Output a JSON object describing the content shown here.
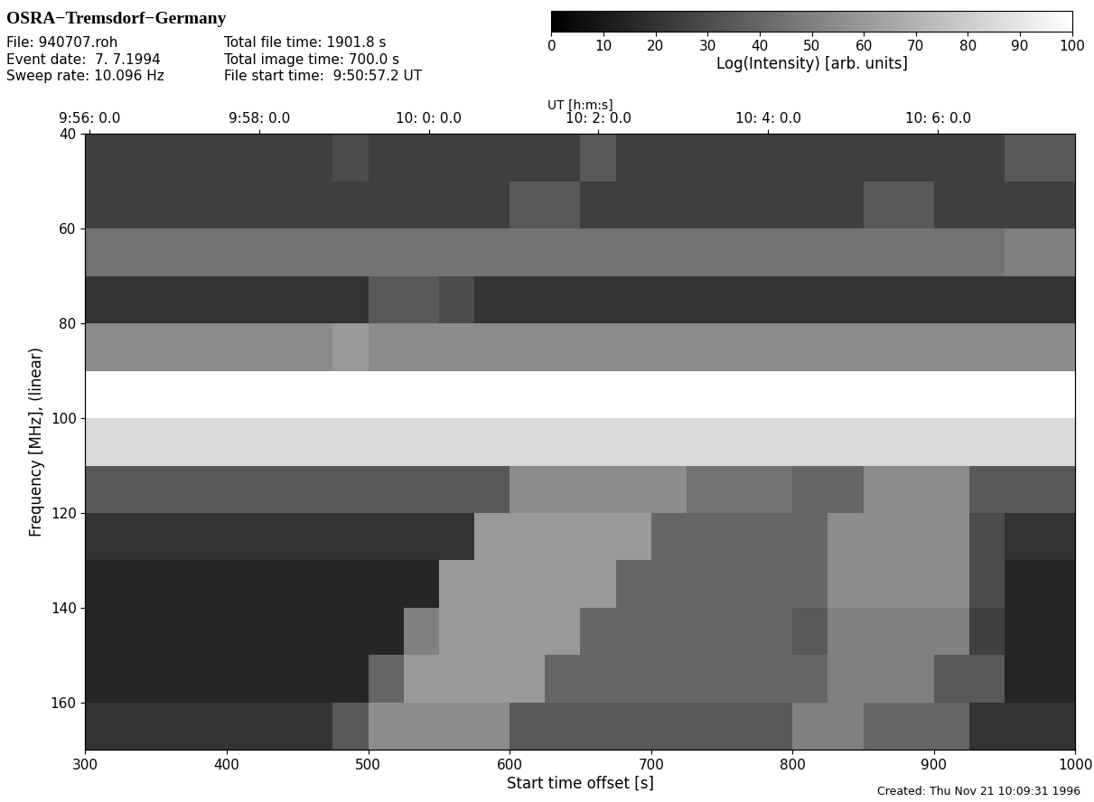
{
  "chart_data": {
    "type": "heatmap",
    "title": "OSRA−Tremsdorf−Germany",
    "header": [
      [
        "File: 940707.roh",
        "Event date:  7. 7.1994",
        "Sweep rate: 10.096 Hz"
      ],
      [
        "Total file time: 1901.8 s",
        "Total image time: 700.0 s",
        "File start time:  9:50:57.2 UT"
      ]
    ],
    "footer": "Created: Thu Nov 21 10:09:31 1996",
    "x_label": "Start time offset [s]",
    "y_label": "Frequency [MHz], (linear)",
    "x2_label": "UT [h:m:s]",
    "colorbar_label": "Log(Intensity) [arb. units]",
    "xlim": [
      300,
      1000
    ],
    "xticks": [
      300,
      400,
      500,
      600,
      700,
      800,
      900,
      1000
    ],
    "x2ticks": [
      {
        "value": 302.8,
        "label": "9:56: 0.0"
      },
      {
        "value": 422.8,
        "label": "9:58: 0.0"
      },
      {
        "value": 542.8,
        "label": "10: 0: 0.0"
      },
      {
        "value": 662.8,
        "label": "10: 2: 0.0"
      },
      {
        "value": 782.8,
        "label": "10: 4: 0.0"
      },
      {
        "value": 902.8,
        "label": "10: 6: 0.0"
      }
    ],
    "ylim": [
      170,
      40
    ],
    "yticks": [
      40,
      60,
      80,
      100,
      120,
      140,
      160
    ],
    "clim": [
      0,
      100
    ],
    "cticks": [
      0,
      10,
      20,
      30,
      40,
      50,
      60,
      70,
      80,
      90,
      100
    ],
    "x_bins": [
      300,
      325,
      350,
      375,
      400,
      425,
      450,
      475,
      500,
      525,
      550,
      575,
      600,
      625,
      650,
      675,
      700,
      725,
      750,
      775,
      800,
      825,
      850,
      875,
      900,
      925,
      950,
      975,
      1000
    ],
    "y_bins": [
      40,
      50,
      60,
      70,
      80,
      90,
      100,
      110,
      120,
      130,
      140,
      150,
      160,
      170
    ],
    "cells": [
      [
        25,
        25,
        25,
        25,
        25,
        25,
        25,
        30,
        25,
        25,
        25,
        25,
        25,
        25,
        35,
        25,
        25,
        25,
        25,
        25,
        25,
        25,
        25,
        25,
        25,
        25,
        35,
        35
      ],
      [
        25,
        25,
        25,
        25,
        25,
        25,
        25,
        25,
        25,
        25,
        25,
        25,
        35,
        35,
        25,
        25,
        25,
        25,
        25,
        25,
        25,
        25,
        35,
        35,
        25,
        25,
        25,
        25
      ],
      [
        45,
        45,
        45,
        45,
        45,
        45,
        45,
        45,
        45,
        45,
        45,
        45,
        45,
        45,
        45,
        45,
        45,
        45,
        45,
        45,
        45,
        45,
        45,
        45,
        45,
        45,
        50,
        50
      ],
      [
        20,
        20,
        20,
        20,
        20,
        20,
        20,
        20,
        35,
        35,
        30,
        20,
        20,
        20,
        20,
        20,
        20,
        20,
        20,
        20,
        20,
        20,
        20,
        20,
        20,
        20,
        20,
        20
      ],
      [
        55,
        55,
        55,
        55,
        55,
        55,
        55,
        60,
        55,
        55,
        55,
        55,
        55,
        55,
        55,
        55,
        55,
        55,
        55,
        55,
        55,
        55,
        55,
        55,
        55,
        55,
        55,
        55
      ],
      [
        100,
        100,
        100,
        100,
        100,
        100,
        100,
        100,
        100,
        100,
        100,
        100,
        100,
        100,
        100,
        100,
        100,
        100,
        100,
        100,
        100,
        100,
        100,
        100,
        100,
        100,
        100,
        100
      ],
      [
        85,
        85,
        85,
        85,
        85,
        85,
        85,
        85,
        85,
        85,
        85,
        85,
        85,
        85,
        85,
        85,
        85,
        85,
        85,
        85,
        85,
        85,
        85,
        85,
        85,
        85,
        85,
        85
      ],
      [
        35,
        35,
        35,
        35,
        35,
        35,
        35,
        35,
        35,
        35,
        35,
        35,
        55,
        55,
        55,
        55,
        55,
        45,
        45,
        45,
        40,
        40,
        55,
        55,
        55,
        35,
        35,
        35
      ],
      [
        20,
        20,
        20,
        20,
        20,
        20,
        20,
        20,
        20,
        20,
        20,
        60,
        60,
        60,
        60,
        60,
        40,
        40,
        40,
        40,
        40,
        55,
        55,
        55,
        55,
        30,
        20,
        20
      ],
      [
        15,
        15,
        15,
        15,
        15,
        15,
        15,
        15,
        15,
        15,
        60,
        60,
        60,
        60,
        60,
        40,
        40,
        40,
        40,
        40,
        40,
        55,
        55,
        55,
        55,
        30,
        15,
        15
      ],
      [
        15,
        15,
        15,
        15,
        15,
        15,
        15,
        15,
        15,
        50,
        60,
        60,
        60,
        60,
        40,
        40,
        40,
        40,
        40,
        40,
        35,
        50,
        50,
        50,
        50,
        25,
        15,
        15
      ],
      [
        15,
        15,
        15,
        15,
        15,
        15,
        15,
        15,
        40,
        60,
        60,
        60,
        60,
        40,
        40,
        40,
        40,
        40,
        40,
        40,
        40,
        50,
        50,
        50,
        35,
        35,
        15,
        15
      ],
      [
        20,
        20,
        20,
        20,
        20,
        20,
        20,
        35,
        55,
        55,
        55,
        55,
        35,
        35,
        35,
        35,
        35,
        35,
        35,
        35,
        50,
        50,
        40,
        40,
        40,
        20,
        20,
        20
      ]
    ],
    "tick_labels": true
  }
}
